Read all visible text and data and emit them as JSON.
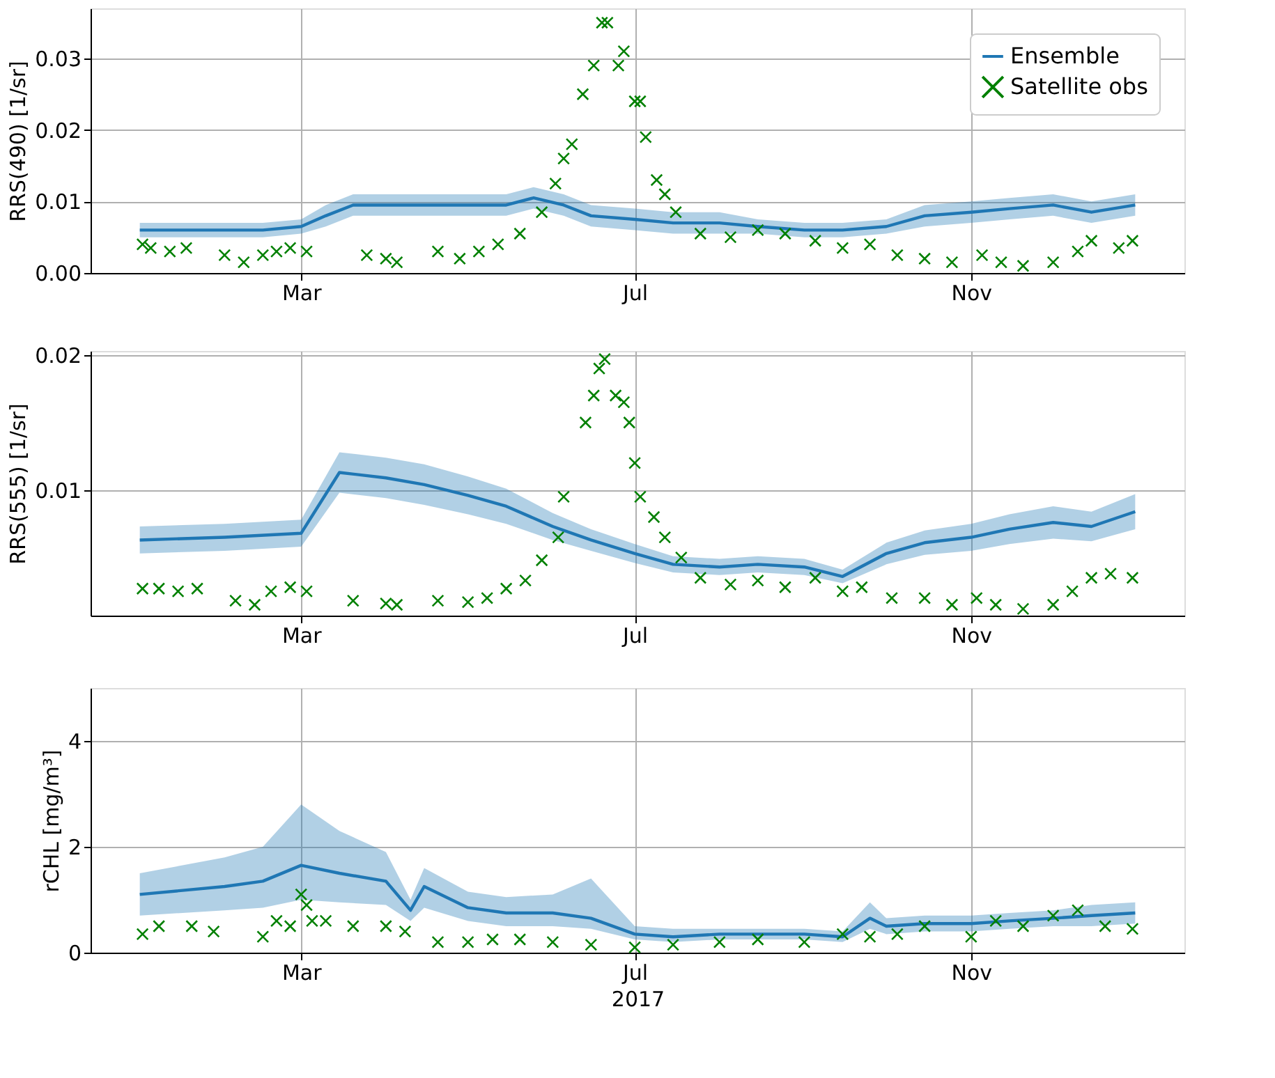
{
  "chart_data": [
    {
      "type": "line",
      "ylabel": "RRS(490) [1/sr]",
      "xlim": [
        "2016-12-14",
        "2018-01-18"
      ],
      "ylim": [
        0,
        0.037
      ],
      "yticks": [
        {
          "value": 0,
          "label": "0.00"
        },
        {
          "value": 0.01,
          "label": "0.01"
        },
        {
          "value": 0.02,
          "label": "0.02"
        },
        {
          "value": 0.03,
          "label": "0.03"
        }
      ],
      "xticks": [
        {
          "value": "2017-03-01",
          "label": "Mar"
        },
        {
          "value": "2017-07-01",
          "label": "Jul"
        },
        {
          "value": "2017-11-01",
          "label": "Nov"
        }
      ],
      "grid": true,
      "legend": "top right",
      "series": [
        {
          "name": "Ensemble",
          "color": "#1f77b4",
          "x": [
            "2017-01-01",
            "2017-01-15",
            "2017-02-01",
            "2017-02-15",
            "2017-03-01",
            "2017-03-10",
            "2017-03-20",
            "2017-04-01",
            "2017-04-15",
            "2017-05-01",
            "2017-05-15",
            "2017-05-25",
            "2017-06-05",
            "2017-06-15",
            "2017-07-01",
            "2017-07-15",
            "2017-08-01",
            "2017-08-15",
            "2017-09-01",
            "2017-09-15",
            "2017-10-01",
            "2017-10-15",
            "2017-11-01",
            "2017-11-15",
            "2017-12-01",
            "2017-12-15",
            "2017-12-31"
          ],
          "values": [
            0.006,
            0.006,
            0.006,
            0.006,
            0.0065,
            0.008,
            0.0095,
            0.0095,
            0.0095,
            0.0095,
            0.0095,
            0.0105,
            0.0095,
            0.008,
            0.0075,
            0.007,
            0.007,
            0.0065,
            0.006,
            0.006,
            0.0065,
            0.008,
            0.0085,
            0.009,
            0.0095,
            0.0085,
            0.0095
          ],
          "lower": [
            0.005,
            0.005,
            0.005,
            0.005,
            0.0055,
            0.0065,
            0.008,
            0.008,
            0.008,
            0.008,
            0.008,
            0.009,
            0.008,
            0.0065,
            0.006,
            0.0055,
            0.0055,
            0.0055,
            0.005,
            0.005,
            0.0055,
            0.0065,
            0.007,
            0.0075,
            0.008,
            0.007,
            0.008
          ],
          "upper": [
            0.007,
            0.007,
            0.007,
            0.007,
            0.0075,
            0.0095,
            0.011,
            0.011,
            0.011,
            0.011,
            0.011,
            0.012,
            0.011,
            0.0095,
            0.009,
            0.0085,
            0.0085,
            0.0075,
            0.007,
            0.007,
            0.0075,
            0.0095,
            0.01,
            0.0105,
            0.011,
            0.01,
            0.011
          ]
        },
        {
          "name": "Satellite obs",
          "type": "scatter",
          "marker": "cross",
          "color": "#008000",
          "x": [
            "2017-01-02",
            "2017-01-05",
            "2017-01-12",
            "2017-01-18",
            "2017-02-01",
            "2017-02-08",
            "2017-02-15",
            "2017-02-20",
            "2017-02-25",
            "2017-03-03",
            "2017-03-25",
            "2017-04-01",
            "2017-04-05",
            "2017-04-20",
            "2017-04-28",
            "2017-05-05",
            "2017-05-12",
            "2017-05-20",
            "2017-05-28",
            "2017-06-02",
            "2017-06-05",
            "2017-06-08",
            "2017-06-12",
            "2017-06-16",
            "2017-06-19",
            "2017-06-21",
            "2017-06-25",
            "2017-06-27",
            "2017-07-01",
            "2017-07-03",
            "2017-07-05",
            "2017-07-09",
            "2017-07-12",
            "2017-07-16",
            "2017-07-25",
            "2017-08-05",
            "2017-08-15",
            "2017-08-25",
            "2017-09-05",
            "2017-09-15",
            "2017-09-25",
            "2017-10-05",
            "2017-10-15",
            "2017-10-25",
            "2017-11-05",
            "2017-11-12",
            "2017-11-20",
            "2017-12-01",
            "2017-12-10",
            "2017-12-15",
            "2017-12-25",
            "2017-12-30"
          ],
          "values": [
            0.004,
            0.0035,
            0.003,
            0.0035,
            0.0025,
            0.0015,
            0.0025,
            0.003,
            0.0035,
            0.003,
            0.0025,
            0.002,
            0.0015,
            0.003,
            0.002,
            0.003,
            0.004,
            0.0055,
            0.0085,
            0.0125,
            0.016,
            0.018,
            0.025,
            0.029,
            0.035,
            0.035,
            0.029,
            0.031,
            0.024,
            0.024,
            0.019,
            0.013,
            0.011,
            0.0085,
            0.0055,
            0.005,
            0.006,
            0.0055,
            0.0045,
            0.0035,
            0.004,
            0.0025,
            0.002,
            0.0015,
            0.0025,
            0.0015,
            0.001,
            0.0015,
            0.003,
            0.0045,
            0.0035,
            0.0045
          ]
        }
      ]
    },
    {
      "type": "line",
      "ylabel": "RRS(555) [1/sr]",
      "xlim": [
        "2016-12-14",
        "2018-01-18"
      ],
      "ylim": [
        0.0007,
        0.0203
      ],
      "yticks": [
        {
          "value": 0.01,
          "label": "0.01"
        },
        {
          "value": 0.02,
          "label": "0.02"
        }
      ],
      "xticks": [
        {
          "value": "2017-03-01",
          "label": "Mar"
        },
        {
          "value": "2017-07-01",
          "label": "Jul"
        },
        {
          "value": "2017-11-01",
          "label": "Nov"
        }
      ],
      "grid": true,
      "series": [
        {
          "color": "#1f77b4",
          "x": [
            "2017-01-01",
            "2017-02-01",
            "2017-03-01",
            "2017-03-15",
            "2017-04-01",
            "2017-04-15",
            "2017-05-01",
            "2017-05-15",
            "2017-06-01",
            "2017-06-15",
            "2017-07-01",
            "2017-07-15",
            "2017-08-01",
            "2017-08-15",
            "2017-09-01",
            "2017-09-15",
            "2017-10-01",
            "2017-10-15",
            "2017-11-01",
            "2017-11-15",
            "2017-12-01",
            "2017-12-15",
            "2017-12-31"
          ],
          "values": [
            0.0063,
            0.0065,
            0.0068,
            0.0113,
            0.0109,
            0.0104,
            0.0096,
            0.0088,
            0.0073,
            0.0063,
            0.0053,
            0.0045,
            0.0043,
            0.0045,
            0.0043,
            0.0036,
            0.0053,
            0.0061,
            0.0065,
            0.0071,
            0.0076,
            0.0073,
            0.0084
          ],
          "lower": [
            0.0053,
            0.0055,
            0.0058,
            0.0098,
            0.0094,
            0.0089,
            0.0082,
            0.0075,
            0.0063,
            0.0055,
            0.0046,
            0.0039,
            0.0037,
            0.0039,
            0.0037,
            0.0031,
            0.0045,
            0.0052,
            0.0055,
            0.006,
            0.0064,
            0.0062,
            0.0071
          ],
          "upper": [
            0.0073,
            0.0075,
            0.0078,
            0.0128,
            0.0124,
            0.0119,
            0.011,
            0.0101,
            0.0083,
            0.0071,
            0.006,
            0.0051,
            0.0049,
            0.0051,
            0.0049,
            0.0041,
            0.0061,
            0.007,
            0.0075,
            0.0082,
            0.0088,
            0.0084,
            0.0097
          ]
        },
        {
          "type": "scatter",
          "marker": "cross",
          "color": "#008000",
          "x": [
            "2017-01-02",
            "2017-01-08",
            "2017-01-15",
            "2017-01-22",
            "2017-02-05",
            "2017-02-12",
            "2017-02-18",
            "2017-02-25",
            "2017-03-03",
            "2017-03-20",
            "2017-04-01",
            "2017-04-05",
            "2017-04-20",
            "2017-05-01",
            "2017-05-08",
            "2017-05-15",
            "2017-05-22",
            "2017-05-28",
            "2017-06-03",
            "2017-06-05",
            "2017-06-13",
            "2017-06-16",
            "2017-06-18",
            "2017-06-20",
            "2017-06-24",
            "2017-06-27",
            "2017-06-29",
            "2017-07-01",
            "2017-07-03",
            "2017-07-08",
            "2017-07-12",
            "2017-07-18",
            "2017-07-25",
            "2017-08-05",
            "2017-08-15",
            "2017-08-25",
            "2017-09-05",
            "2017-09-15",
            "2017-09-22",
            "2017-10-03",
            "2017-10-15",
            "2017-10-25",
            "2017-11-03",
            "2017-11-10",
            "2017-11-20",
            "2017-12-01",
            "2017-12-08",
            "2017-12-15",
            "2017-12-22",
            "2017-12-30"
          ],
          "values": [
            0.0027,
            0.0027,
            0.0025,
            0.0027,
            0.0018,
            0.0015,
            0.0025,
            0.0028,
            0.0025,
            0.0018,
            0.0016,
            0.0015,
            0.0018,
            0.0017,
            0.002,
            0.0027,
            0.0033,
            0.0048,
            0.0065,
            0.0095,
            0.015,
            0.017,
            0.019,
            0.0197,
            0.017,
            0.0165,
            0.015,
            0.012,
            0.0095,
            0.008,
            0.0065,
            0.005,
            0.0035,
            0.003,
            0.0033,
            0.0028,
            0.0035,
            0.0025,
            0.0028,
            0.002,
            0.002,
            0.0015,
            0.002,
            0.0015,
            0.0012,
            0.0015,
            0.0025,
            0.0035,
            0.0038,
            0.0035
          ]
        }
      ]
    },
    {
      "type": "line",
      "ylabel": "rCHL [mg/m³]",
      "xlabel": "2017",
      "xlim": [
        "2016-12-14",
        "2018-01-18"
      ],
      "ylim": [
        0,
        5.0
      ],
      "yticks": [
        0,
        2,
        4
      ],
      "xticks": [
        {
          "value": "2017-03-01",
          "label": "Mar"
        },
        {
          "value": "2017-07-01",
          "label": "Jul"
        },
        {
          "value": "2017-11-01",
          "label": "Nov"
        }
      ],
      "grid": true,
      "series": [
        {
          "color": "#1f77b4",
          "x": [
            "2017-01-01",
            "2017-02-01",
            "2017-02-15",
            "2017-03-01",
            "2017-03-15",
            "2017-04-01",
            "2017-04-10",
            "2017-04-15",
            "2017-05-01",
            "2017-05-15",
            "2017-06-01",
            "2017-06-15",
            "2017-07-01",
            "2017-07-15",
            "2017-08-01",
            "2017-08-15",
            "2017-09-01",
            "2017-09-15",
            "2017-09-25",
            "2017-10-01",
            "2017-10-15",
            "2017-11-01",
            "2017-11-15",
            "2017-12-01",
            "2017-12-15",
            "2017-12-31"
          ],
          "values": [
            1.1,
            1.25,
            1.35,
            1.65,
            1.5,
            1.35,
            0.8,
            1.25,
            0.85,
            0.75,
            0.75,
            0.65,
            0.35,
            0.3,
            0.35,
            0.35,
            0.35,
            0.3,
            0.65,
            0.5,
            0.55,
            0.55,
            0.6,
            0.65,
            0.7,
            0.75
          ],
          "lower": [
            0.7,
            0.8,
            0.85,
            1.0,
            0.95,
            0.9,
            0.6,
            0.85,
            0.6,
            0.5,
            0.5,
            0.45,
            0.25,
            0.2,
            0.25,
            0.25,
            0.25,
            0.2,
            0.45,
            0.35,
            0.4,
            0.4,
            0.45,
            0.5,
            0.5,
            0.55
          ],
          "upper": [
            1.5,
            1.8,
            2.0,
            2.8,
            2.3,
            1.9,
            1.0,
            1.6,
            1.15,
            1.05,
            1.1,
            1.4,
            0.5,
            0.45,
            0.45,
            0.45,
            0.45,
            0.4,
            0.95,
            0.65,
            0.7,
            0.7,
            0.75,
            0.8,
            0.9,
            0.95
          ]
        },
        {
          "type": "scatter",
          "marker": "cross",
          "color": "#008000",
          "x": [
            "2017-01-02",
            "2017-01-08",
            "2017-01-20",
            "2017-01-28",
            "2017-02-15",
            "2017-02-20",
            "2017-02-25",
            "2017-03-01",
            "2017-03-03",
            "2017-03-05",
            "2017-03-10",
            "2017-03-20",
            "2017-04-01",
            "2017-04-08",
            "2017-04-20",
            "2017-05-01",
            "2017-05-10",
            "2017-05-20",
            "2017-06-01",
            "2017-06-15",
            "2017-07-01",
            "2017-07-15",
            "2017-08-01",
            "2017-08-15",
            "2017-09-01",
            "2017-09-15",
            "2017-09-25",
            "2017-10-05",
            "2017-10-15",
            "2017-11-01",
            "2017-11-10",
            "2017-11-20",
            "2017-12-01",
            "2017-12-10",
            "2017-12-20",
            "2017-12-30"
          ],
          "values": [
            0.35,
            0.5,
            0.5,
            0.4,
            0.3,
            0.6,
            0.5,
            1.1,
            0.9,
            0.6,
            0.6,
            0.5,
            0.5,
            0.4,
            0.2,
            0.2,
            0.25,
            0.25,
            0.2,
            0.15,
            0.1,
            0.15,
            0.2,
            0.25,
            0.2,
            0.35,
            0.3,
            0.35,
            0.5,
            0.3,
            0.6,
            0.5,
            0.7,
            0.8,
            0.5,
            0.45
          ]
        }
      ]
    }
  ]
}
